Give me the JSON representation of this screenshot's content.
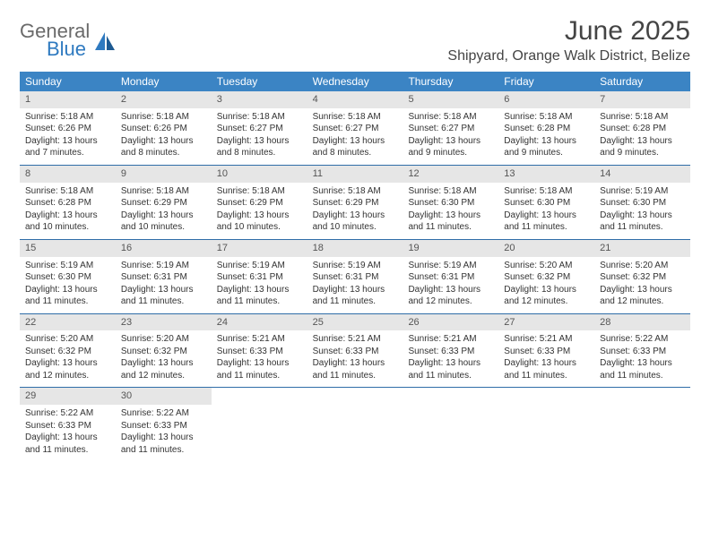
{
  "logo": {
    "text1": "General",
    "text2": "Blue"
  },
  "title": "June 2025",
  "location": "Shipyard, Orange Walk District, Belize",
  "colors": {
    "header_bg": "#3b84c4",
    "header_fg": "#ffffff",
    "num_bg": "#e6e6e6",
    "divider": "#2f6da8",
    "text": "#333333",
    "title": "#444444",
    "logo_gray": "#6a6a6a",
    "logo_blue": "#2f7ac0"
  },
  "typography": {
    "title_fontsize": 30,
    "location_fontsize": 16,
    "weekday_fontsize": 12,
    "daynum_fontsize": 11,
    "body_fontsize": 10
  },
  "weekdays": [
    "Sunday",
    "Monday",
    "Tuesday",
    "Wednesday",
    "Thursday",
    "Friday",
    "Saturday"
  ],
  "weeks": [
    [
      {
        "n": "1",
        "sr": "Sunrise: 5:18 AM",
        "ss": "Sunset: 6:26 PM",
        "dl": "Daylight: 13 hours and 7 minutes."
      },
      {
        "n": "2",
        "sr": "Sunrise: 5:18 AM",
        "ss": "Sunset: 6:26 PM",
        "dl": "Daylight: 13 hours and 8 minutes."
      },
      {
        "n": "3",
        "sr": "Sunrise: 5:18 AM",
        "ss": "Sunset: 6:27 PM",
        "dl": "Daylight: 13 hours and 8 minutes."
      },
      {
        "n": "4",
        "sr": "Sunrise: 5:18 AM",
        "ss": "Sunset: 6:27 PM",
        "dl": "Daylight: 13 hours and 8 minutes."
      },
      {
        "n": "5",
        "sr": "Sunrise: 5:18 AM",
        "ss": "Sunset: 6:27 PM",
        "dl": "Daylight: 13 hours and 9 minutes."
      },
      {
        "n": "6",
        "sr": "Sunrise: 5:18 AM",
        "ss": "Sunset: 6:28 PM",
        "dl": "Daylight: 13 hours and 9 minutes."
      },
      {
        "n": "7",
        "sr": "Sunrise: 5:18 AM",
        "ss": "Sunset: 6:28 PM",
        "dl": "Daylight: 13 hours and 9 minutes."
      }
    ],
    [
      {
        "n": "8",
        "sr": "Sunrise: 5:18 AM",
        "ss": "Sunset: 6:28 PM",
        "dl": "Daylight: 13 hours and 10 minutes."
      },
      {
        "n": "9",
        "sr": "Sunrise: 5:18 AM",
        "ss": "Sunset: 6:29 PM",
        "dl": "Daylight: 13 hours and 10 minutes."
      },
      {
        "n": "10",
        "sr": "Sunrise: 5:18 AM",
        "ss": "Sunset: 6:29 PM",
        "dl": "Daylight: 13 hours and 10 minutes."
      },
      {
        "n": "11",
        "sr": "Sunrise: 5:18 AM",
        "ss": "Sunset: 6:29 PM",
        "dl": "Daylight: 13 hours and 10 minutes."
      },
      {
        "n": "12",
        "sr": "Sunrise: 5:18 AM",
        "ss": "Sunset: 6:30 PM",
        "dl": "Daylight: 13 hours and 11 minutes."
      },
      {
        "n": "13",
        "sr": "Sunrise: 5:18 AM",
        "ss": "Sunset: 6:30 PM",
        "dl": "Daylight: 13 hours and 11 minutes."
      },
      {
        "n": "14",
        "sr": "Sunrise: 5:19 AM",
        "ss": "Sunset: 6:30 PM",
        "dl": "Daylight: 13 hours and 11 minutes."
      }
    ],
    [
      {
        "n": "15",
        "sr": "Sunrise: 5:19 AM",
        "ss": "Sunset: 6:30 PM",
        "dl": "Daylight: 13 hours and 11 minutes."
      },
      {
        "n": "16",
        "sr": "Sunrise: 5:19 AM",
        "ss": "Sunset: 6:31 PM",
        "dl": "Daylight: 13 hours and 11 minutes."
      },
      {
        "n": "17",
        "sr": "Sunrise: 5:19 AM",
        "ss": "Sunset: 6:31 PM",
        "dl": "Daylight: 13 hours and 11 minutes."
      },
      {
        "n": "18",
        "sr": "Sunrise: 5:19 AM",
        "ss": "Sunset: 6:31 PM",
        "dl": "Daylight: 13 hours and 11 minutes."
      },
      {
        "n": "19",
        "sr": "Sunrise: 5:19 AM",
        "ss": "Sunset: 6:31 PM",
        "dl": "Daylight: 13 hours and 12 minutes."
      },
      {
        "n": "20",
        "sr": "Sunrise: 5:20 AM",
        "ss": "Sunset: 6:32 PM",
        "dl": "Daylight: 13 hours and 12 minutes."
      },
      {
        "n": "21",
        "sr": "Sunrise: 5:20 AM",
        "ss": "Sunset: 6:32 PM",
        "dl": "Daylight: 13 hours and 12 minutes."
      }
    ],
    [
      {
        "n": "22",
        "sr": "Sunrise: 5:20 AM",
        "ss": "Sunset: 6:32 PM",
        "dl": "Daylight: 13 hours and 12 minutes."
      },
      {
        "n": "23",
        "sr": "Sunrise: 5:20 AM",
        "ss": "Sunset: 6:32 PM",
        "dl": "Daylight: 13 hours and 12 minutes."
      },
      {
        "n": "24",
        "sr": "Sunrise: 5:21 AM",
        "ss": "Sunset: 6:33 PM",
        "dl": "Daylight: 13 hours and 11 minutes."
      },
      {
        "n": "25",
        "sr": "Sunrise: 5:21 AM",
        "ss": "Sunset: 6:33 PM",
        "dl": "Daylight: 13 hours and 11 minutes."
      },
      {
        "n": "26",
        "sr": "Sunrise: 5:21 AM",
        "ss": "Sunset: 6:33 PM",
        "dl": "Daylight: 13 hours and 11 minutes."
      },
      {
        "n": "27",
        "sr": "Sunrise: 5:21 AM",
        "ss": "Sunset: 6:33 PM",
        "dl": "Daylight: 13 hours and 11 minutes."
      },
      {
        "n": "28",
        "sr": "Sunrise: 5:22 AM",
        "ss": "Sunset: 6:33 PM",
        "dl": "Daylight: 13 hours and 11 minutes."
      }
    ],
    [
      {
        "n": "29",
        "sr": "Sunrise: 5:22 AM",
        "ss": "Sunset: 6:33 PM",
        "dl": "Daylight: 13 hours and 11 minutes."
      },
      {
        "n": "30",
        "sr": "Sunrise: 5:22 AM",
        "ss": "Sunset: 6:33 PM",
        "dl": "Daylight: 13 hours and 11 minutes."
      },
      null,
      null,
      null,
      null,
      null
    ]
  ]
}
